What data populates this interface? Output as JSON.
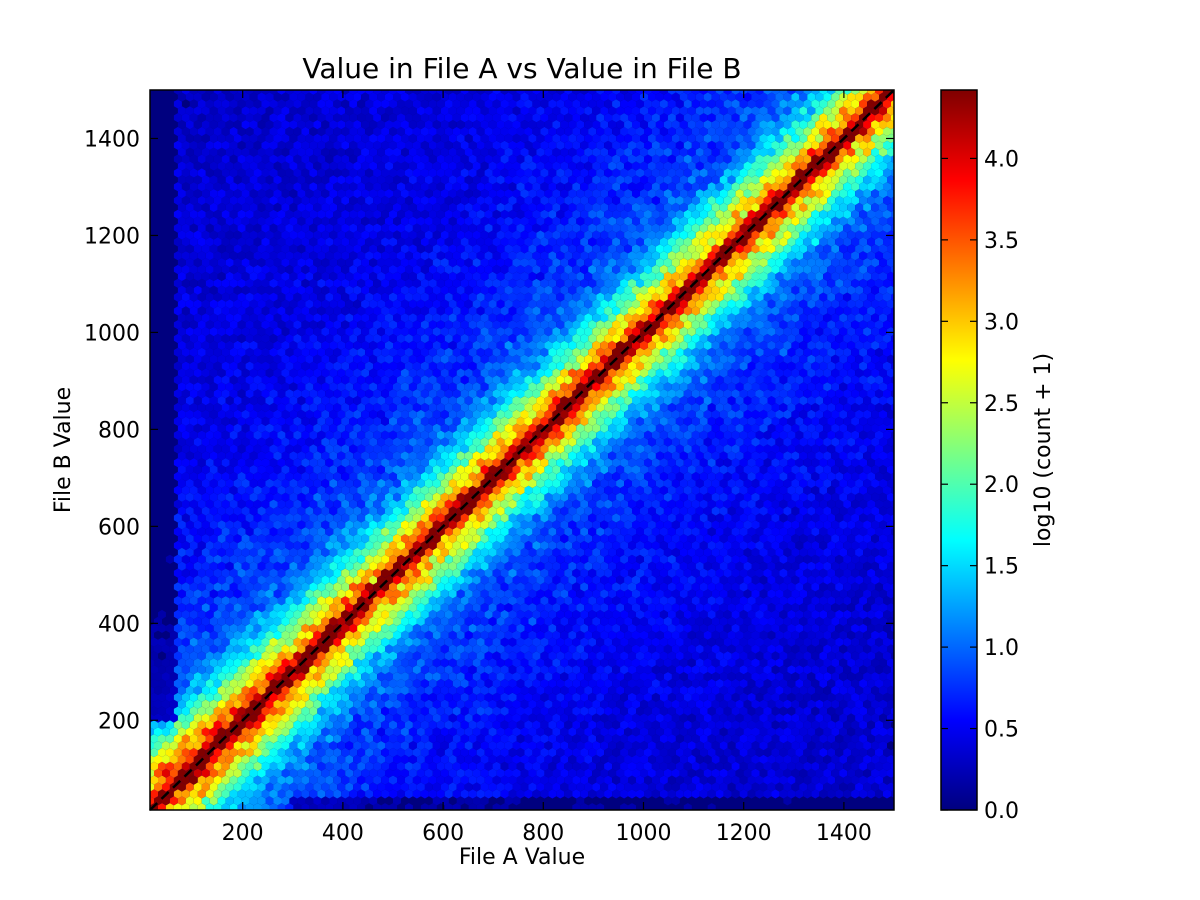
{
  "chart_data": {
    "type": "heatmap",
    "subtype": "hexbin",
    "title": "Value in File A vs Value in File B",
    "xlabel": "File A Value",
    "ylabel": "File B Value",
    "xlim": [
      15,
      1500
    ],
    "ylim": [
      15,
      1500
    ],
    "xticks": [
      200,
      400,
      600,
      800,
      1000,
      1200,
      1400
    ],
    "yticks": [
      200,
      400,
      600,
      800,
      1000,
      1200,
      1400
    ],
    "xtick_labels": [
      "200",
      "400",
      "600",
      "800",
      "1000",
      "1200",
      "1400"
    ],
    "ytick_labels": [
      "200",
      "400",
      "600",
      "800",
      "1000",
      "1200",
      "1400"
    ],
    "grid": false,
    "colormap": "jet",
    "colorbar": {
      "label": "log10 (count + 1)",
      "range": [
        0.0,
        4.42
      ],
      "ticks": [
        0.0,
        0.5,
        1.0,
        1.5,
        2.0,
        2.5,
        3.0,
        3.5,
        4.0
      ],
      "tick_labels": [
        "0.0",
        "0.5",
        "1.0",
        "1.5",
        "2.0",
        "2.5",
        "3.0",
        "3.5",
        "4.0"
      ],
      "colors": [
        "#00007f",
        "#0000ff",
        "#007fff",
        "#00ffff",
        "#7fff7f",
        "#ffff00",
        "#ff7f00",
        "#ff0000",
        "#7f0000"
      ]
    },
    "reference_line": {
      "style": "dashed",
      "color": "#000000",
      "from": [
        15,
        15
      ],
      "to": [
        1500,
        1500
      ]
    },
    "density_model": {
      "background_level": 0.25,
      "near_diagonal_peak": 4.0,
      "mid_band_level": 2.2,
      "outer_band_level": 1.0
    }
  }
}
